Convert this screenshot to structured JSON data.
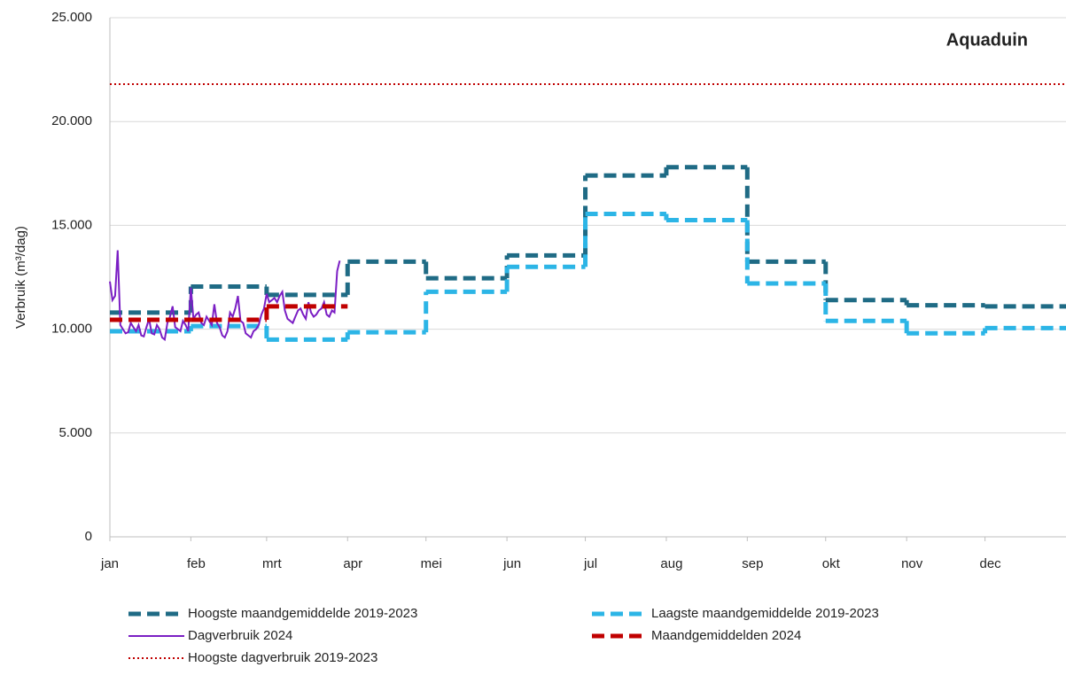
{
  "chart_data": {
    "type": "line",
    "title": "Aquaduin",
    "y_label": "Verbruik (m³/dag)",
    "xlim": [
      0,
      366
    ],
    "xticks": [
      {
        "value": 0,
        "label": "jan"
      },
      {
        "value": 31,
        "label": "feb"
      },
      {
        "value": 60,
        "label": "mrt"
      },
      {
        "value": 91,
        "label": "apr"
      },
      {
        "value": 121,
        "label": "mei"
      },
      {
        "value": 152,
        "label": "jun"
      },
      {
        "value": 182,
        "label": "jul"
      },
      {
        "value": 213,
        "label": "aug"
      },
      {
        "value": 244,
        "label": "sep"
      },
      {
        "value": 274,
        "label": "okt"
      },
      {
        "value": 305,
        "label": "nov"
      },
      {
        "value": 335,
        "label": "dec"
      }
    ],
    "ylim": [
      0,
      25000
    ],
    "yticks": [
      0,
      {
        "value": 5000,
        "label": "5.000"
      },
      {
        "value": 10000,
        "label": "10.000"
      },
      {
        "value": 15000,
        "label": "15.000"
      },
      {
        "value": 20000,
        "label": "20.000"
      },
      {
        "value": 25000,
        "label": "25.000"
      }
    ],
    "grid": true,
    "series": [
      {
        "name": "Hoogste maandgemiddelde 2019-2023",
        "color": "#1f6b85",
        "style": "step",
        "x": [
          0,
          31,
          60,
          91,
          121,
          152,
          182,
          213,
          244,
          274,
          305,
          335
        ],
        "values": [
          10800,
          12050,
          11650,
          13250,
          12450,
          13550,
          17400,
          17800,
          13250,
          11400,
          11150,
          11100
        ]
      },
      {
        "name": "Laagste maandgemiddelde 2019-2023",
        "color": "#2cb5e6",
        "style": "step",
        "x": [
          0,
          31,
          60,
          91,
          121,
          152,
          182,
          213,
          244,
          274,
          305,
          335
        ],
        "values": [
          9900,
          10150,
          9500,
          9850,
          11800,
          13000,
          15550,
          15250,
          12200,
          10400,
          9800,
          10050
        ]
      },
      {
        "name": "Dagverbruik 2024",
        "color": "#7b1fc4",
        "style": "line",
        "x": [
          0,
          1,
          2,
          3,
          4,
          5,
          6,
          7,
          8,
          9,
          10,
          11,
          12,
          13,
          14,
          15,
          16,
          17,
          18,
          19,
          20,
          21,
          22,
          23,
          24,
          25,
          26,
          27,
          28,
          29,
          30,
          31,
          32,
          33,
          34,
          35,
          36,
          37,
          38,
          39,
          40,
          41,
          42,
          43,
          44,
          45,
          46,
          47,
          48,
          49,
          50,
          51,
          52,
          53,
          54,
          55,
          56,
          57,
          58,
          59,
          60,
          61,
          62,
          63,
          64,
          65,
          66,
          67,
          68,
          69,
          70,
          71,
          72,
          73,
          74,
          75,
          76,
          77,
          78,
          79,
          80,
          81,
          82,
          83,
          84,
          85,
          86,
          87,
          88
        ],
        "values": [
          12300,
          11400,
          11600,
          13800,
          10200,
          10000,
          9800,
          9850,
          10300,
          10100,
          9900,
          10200,
          9700,
          9650,
          10100,
          10500,
          9800,
          9750,
          10200,
          10000,
          9600,
          9500,
          10300,
          10600,
          11100,
          10100,
          10000,
          9900,
          10400,
          10200,
          9900,
          12000,
          10500,
          10700,
          10800,
          10300,
          10200,
          10600,
          10400,
          10200,
          11200,
          10300,
          10100,
          9700,
          9600,
          9900,
          10800,
          10600,
          11000,
          11600,
          10400,
          10300,
          9800,
          9700,
          9600,
          9900,
          10000,
          10200,
          10700,
          11000,
          11700,
          11300,
          11400,
          11500,
          11300,
          11600,
          11800,
          10900,
          10500,
          10400,
          10300,
          10600,
          10900,
          11000,
          10700,
          10500,
          11300,
          10800,
          10600,
          10700,
          10900,
          11000,
          11300,
          10700,
          10600,
          10900,
          10800,
          12800,
          13300
        ]
      },
      {
        "name": "Maandgemiddelden 2024",
        "color": "#c00000",
        "style": "step",
        "x": [
          0,
          31,
          60
        ],
        "values": [
          10450,
          10450,
          11100
        ]
      },
      {
        "name": "Hoogste dagverbruik 2019-2023",
        "color": "#c00000",
        "style": "hline",
        "values": [
          21800
        ]
      }
    ]
  }
}
